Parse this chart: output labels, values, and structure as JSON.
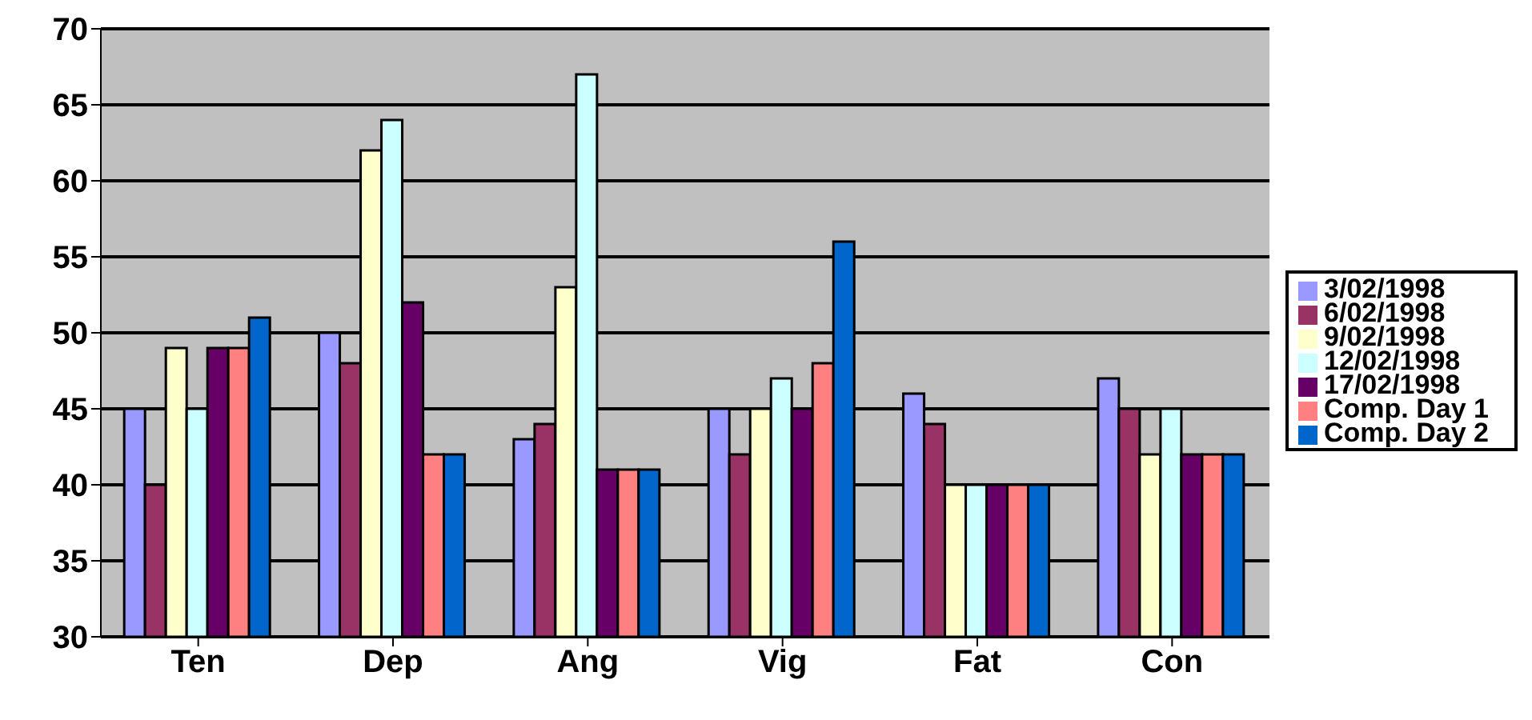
{
  "chart_data": {
    "type": "bar",
    "categories": [
      "Ten",
      "Dep",
      "Ang",
      "Vig",
      "Fat",
      "Con"
    ],
    "series": [
      {
        "name": "3/02/1998",
        "color": "#9999ff",
        "values": [
          45,
          50,
          43,
          45,
          46,
          47
        ]
      },
      {
        "name": "6/02/1998",
        "color": "#993366",
        "values": [
          40,
          48,
          44,
          42,
          44,
          45
        ]
      },
      {
        "name": "9/02/1998",
        "color": "#ffffcc",
        "values": [
          49,
          62,
          53,
          45,
          40,
          42
        ]
      },
      {
        "name": "12/02/1998",
        "color": "#ccffff",
        "values": [
          45,
          64,
          67,
          47,
          40,
          45
        ]
      },
      {
        "name": "17/02/1998",
        "color": "#660066",
        "values": [
          49,
          52,
          41,
          45,
          40,
          42
        ]
      },
      {
        "name": "Comp. Day 1",
        "color": "#ff8080",
        "values": [
          49,
          42,
          41,
          48,
          40,
          42
        ]
      },
      {
        "name": "Comp. Day 2",
        "color": "#0066cc",
        "values": [
          51,
          42,
          41,
          56,
          40,
          42
        ]
      }
    ],
    "ylim": [
      30,
      70
    ],
    "yticks": [
      30,
      35,
      40,
      45,
      50,
      55,
      60,
      65,
      70
    ],
    "grid": "y",
    "legend": "right"
  }
}
